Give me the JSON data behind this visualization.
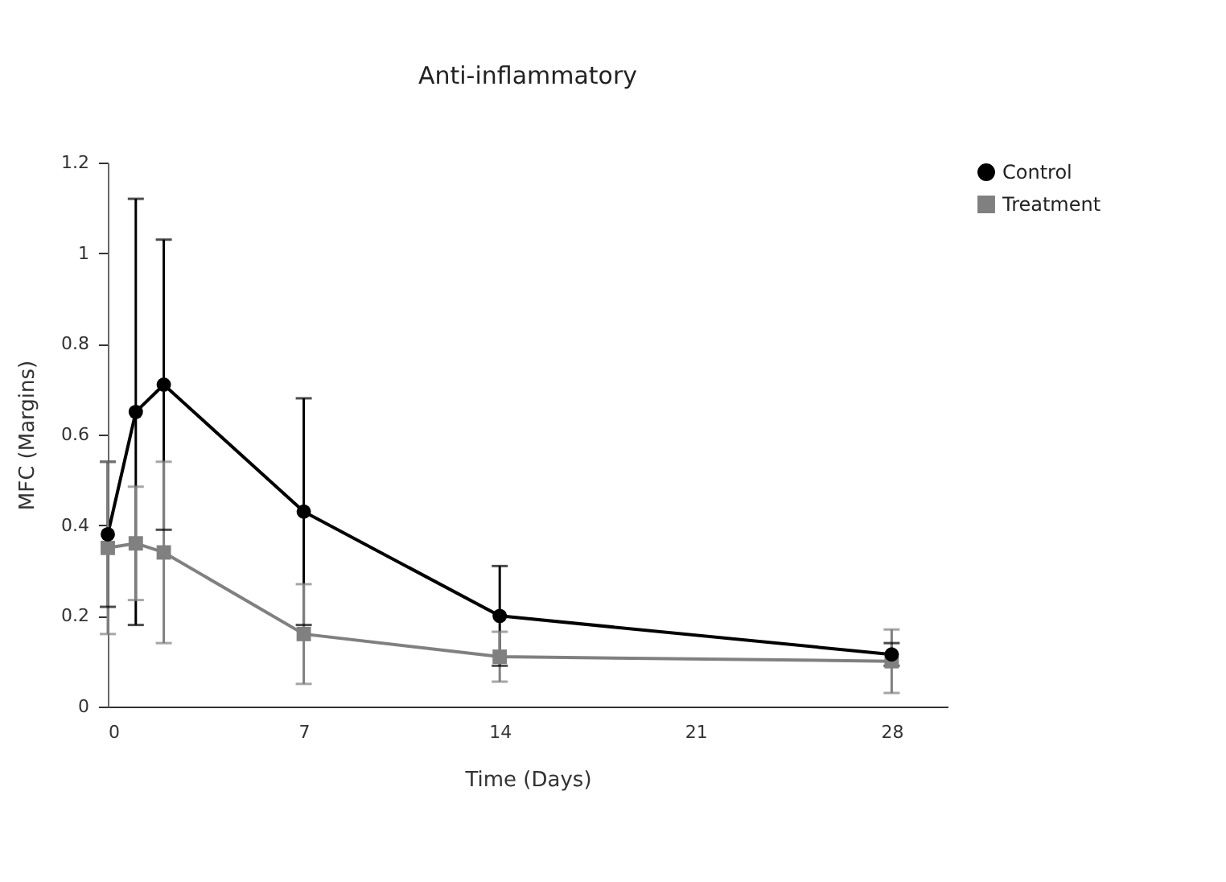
{
  "chart_data": {
    "type": "line",
    "title": "Anti-inflammatory",
    "xlabel": "Time (Days)",
    "ylabel": "MFC (Margins)",
    "x": [
      0,
      1,
      2,
      7,
      14,
      28
    ],
    "series": [
      {
        "name": "Control",
        "color": "#000000",
        "marker": "circle",
        "values": [
          0.38,
          0.65,
          0.71,
          0.43,
          0.2,
          0.115
        ],
        "errors": [
          0.16,
          0.47,
          0.32,
          0.25,
          0.11,
          0.025
        ]
      },
      {
        "name": "Treatment",
        "color": "#808080",
        "marker": "square",
        "values": [
          0.35,
          0.36,
          0.34,
          0.16,
          0.11,
          0.1
        ],
        "errors": [
          0.19,
          0.125,
          0.2,
          0.11,
          0.055,
          0.07
        ]
      }
    ],
    "xlim": [
      0,
      30
    ],
    "xticks": [
      0,
      7,
      14,
      21,
      28
    ],
    "ylim": [
      0,
      1.2
    ],
    "yticks": [
      0,
      0.2,
      0.4,
      0.6,
      0.8,
      1,
      1.2
    ],
    "grid": false,
    "legend": "top right",
    "line_style": "solid"
  }
}
